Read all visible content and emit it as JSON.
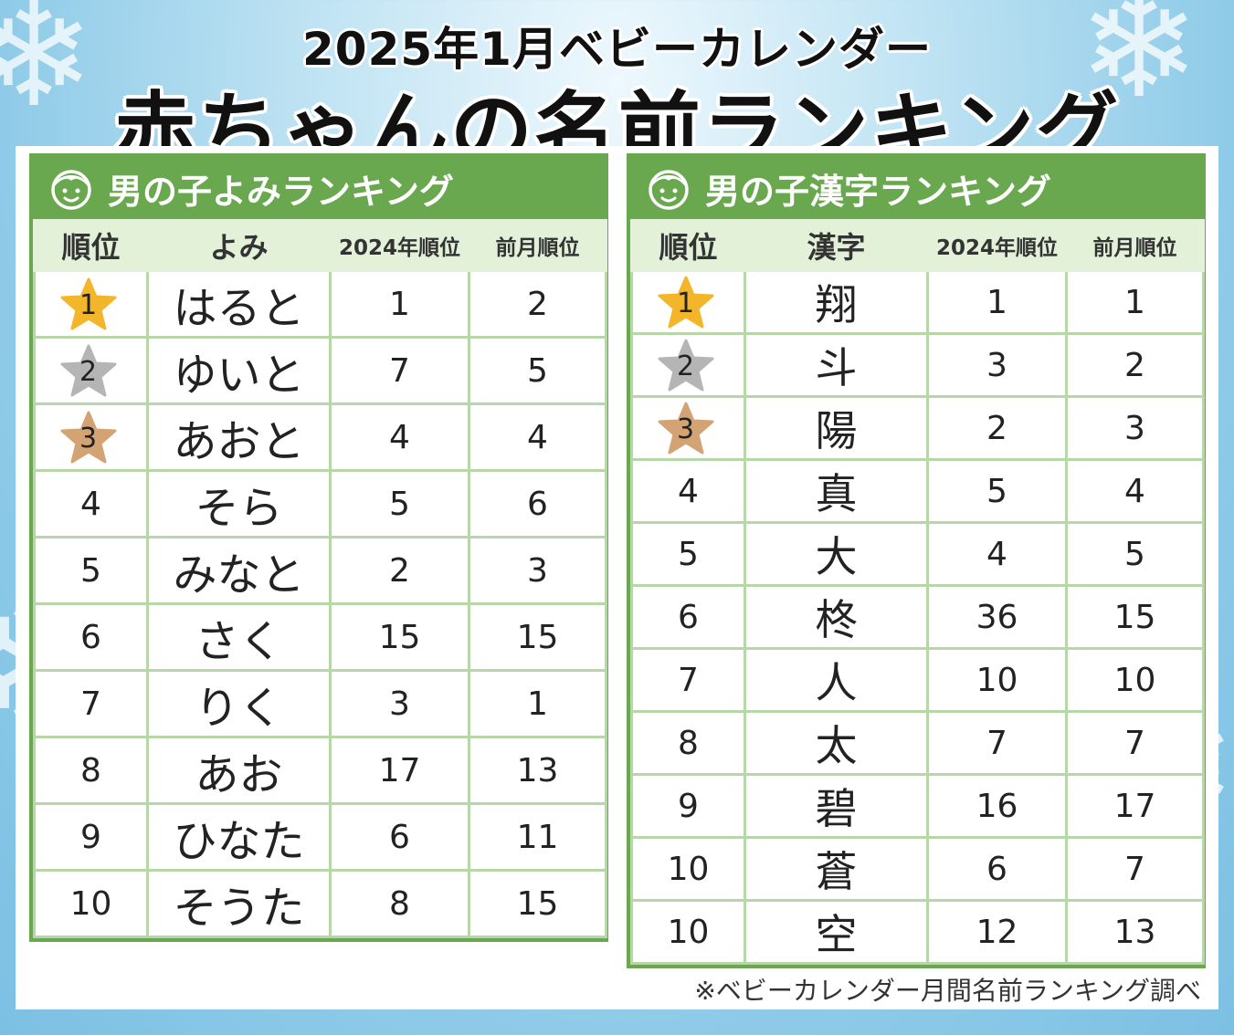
{
  "title_line1": "2025年1月ベビーカレンダー",
  "title_line2": "赤ちゃんの名前ランキング",
  "colors": {
    "green": "#6aa84f",
    "gold": "#f3b52a",
    "silver": "#b5b5b5",
    "bronze": "#d4a374"
  },
  "yomi_table": {
    "title": "男の子よみランキング",
    "headers": [
      "順位",
      "よみ",
      "2024年順位",
      "前月順位"
    ],
    "rows": [
      {
        "rank": "1",
        "name": "はると",
        "y2024": "1",
        "prev": "2"
      },
      {
        "rank": "2",
        "name": "ゆいと",
        "y2024": "7",
        "prev": "5"
      },
      {
        "rank": "3",
        "name": "あおと",
        "y2024": "4",
        "prev": "4"
      },
      {
        "rank": "4",
        "name": "そら",
        "y2024": "5",
        "prev": "6"
      },
      {
        "rank": "5",
        "name": "みなと",
        "y2024": "2",
        "prev": "3"
      },
      {
        "rank": "6",
        "name": "さく",
        "y2024": "15",
        "prev": "15"
      },
      {
        "rank": "7",
        "name": "りく",
        "y2024": "3",
        "prev": "1"
      },
      {
        "rank": "8",
        "name": "あお",
        "y2024": "17",
        "prev": "13"
      },
      {
        "rank": "9",
        "name": "ひなた",
        "y2024": "6",
        "prev": "11"
      },
      {
        "rank": "10",
        "name": "そうた",
        "y2024": "8",
        "prev": "15"
      }
    ]
  },
  "kanji_table": {
    "title": "男の子漢字ランキング",
    "headers": [
      "順位",
      "漢字",
      "2024年順位",
      "前月順位"
    ],
    "rows": [
      {
        "rank": "1",
        "name": "翔",
        "y2024": "1",
        "prev": "1"
      },
      {
        "rank": "2",
        "name": "斗",
        "y2024": "3",
        "prev": "2"
      },
      {
        "rank": "3",
        "name": "陽",
        "y2024": "2",
        "prev": "3"
      },
      {
        "rank": "4",
        "name": "真",
        "y2024": "5",
        "prev": "4"
      },
      {
        "rank": "5",
        "name": "大",
        "y2024": "4",
        "prev": "5"
      },
      {
        "rank": "6",
        "name": "柊",
        "y2024": "36",
        "prev": "15"
      },
      {
        "rank": "7",
        "name": "人",
        "y2024": "10",
        "prev": "10"
      },
      {
        "rank": "8",
        "name": "太",
        "y2024": "7",
        "prev": "7"
      },
      {
        "rank": "9",
        "name": "碧",
        "y2024": "16",
        "prev": "17"
      },
      {
        "rank": "10",
        "name": "蒼",
        "y2024": "6",
        "prev": "7"
      },
      {
        "rank": "10",
        "name": "空",
        "y2024": "12",
        "prev": "13"
      }
    ]
  },
  "footnote": "※ベビーカレンダー月間名前ランキング調べ"
}
